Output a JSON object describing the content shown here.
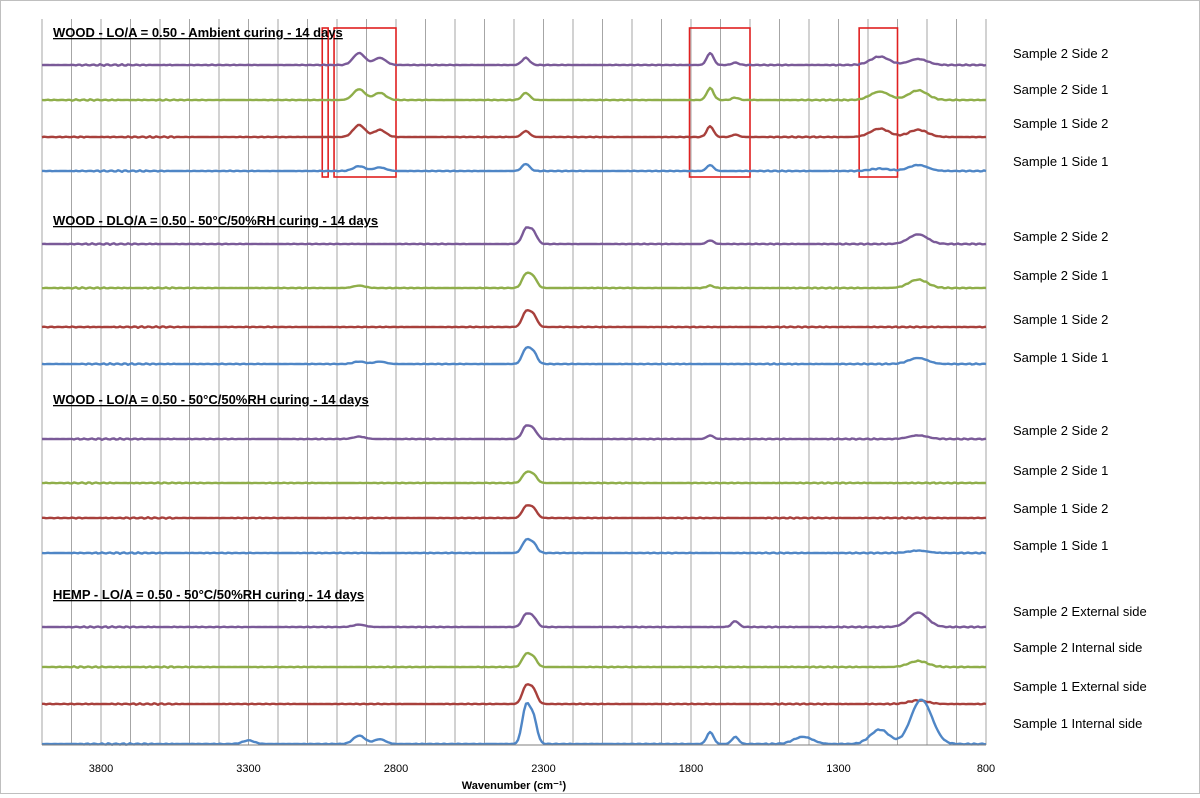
{
  "chart_data": {
    "type": "line",
    "xlabel": "Wavenumber (cm⁻¹)",
    "xlim": [
      4000,
      800
    ],
    "x_reversed": true,
    "xticks": [
      3800,
      3300,
      2800,
      2300,
      1800,
      1300,
      800
    ],
    "vertical_gridlines_every": 100,
    "highlight_boxes_group_1": [
      [
        3050,
        3030
      ],
      [
        3010,
        2800
      ],
      [
        1805,
        1600
      ],
      [
        1230,
        1100
      ]
    ],
    "series_colors": {
      "Sample 2 Side 2": "#7a5a98",
      "Sample 2 Side 1": "#8fae4a",
      "Sample 1 Side 2": "#a8403c",
      "Sample 1 Side 1": "#4f86c6",
      "Sample 2 External side": "#7a5a98",
      "Sample 2 Internal side": "#8fae4a",
      "Sample 1 External side": "#a8403c",
      "Sample 1 Internal side": "#4f86c6"
    },
    "groups": [
      {
        "title": "WOOD - LO/A = 0.50 - Ambient curing - 14 days",
        "series": [
          {
            "name": "Sample 2 Side 2",
            "peaks": [
              [
                2925,
                1.0
              ],
              [
                2855,
                0.6
              ],
              [
                2360,
                0.6
              ],
              [
                1735,
                1.0
              ],
              [
                1650,
                0.2
              ],
              [
                1160,
                0.7
              ],
              [
                1030,
                0.5
              ]
            ]
          },
          {
            "name": "Sample 2 Side 1",
            "peaks": [
              [
                2925,
                0.9
              ],
              [
                2855,
                0.6
              ],
              [
                2360,
                0.6
              ],
              [
                1735,
                1.0
              ],
              [
                1650,
                0.2
              ],
              [
                1160,
                0.7
              ],
              [
                1030,
                0.8
              ]
            ]
          },
          {
            "name": "Sample 1 Side 2",
            "peaks": [
              [
                2925,
                1.0
              ],
              [
                2855,
                0.6
              ],
              [
                2360,
                0.5
              ],
              [
                1735,
                0.9
              ],
              [
                1650,
                0.2
              ],
              [
                1160,
                0.7
              ],
              [
                1030,
                0.6
              ]
            ]
          },
          {
            "name": "Sample 1 Side 1",
            "peaks": [
              [
                2925,
                0.4
              ],
              [
                2855,
                0.3
              ],
              [
                2360,
                0.6
              ],
              [
                1735,
                0.5
              ],
              [
                1160,
                0.2
              ],
              [
                1030,
                0.5
              ]
            ]
          }
        ]
      },
      {
        "title": "WOOD - DLO/A = 0.50 - 50°C/50%RH curing - 14 days",
        "series": [
          {
            "name": "Sample 2 Side 2",
            "peaks": [
              [
                2360,
                1.2
              ],
              [
                2335,
                1.0
              ],
              [
                1735,
                0.3
              ],
              [
                1030,
                0.8
              ]
            ]
          },
          {
            "name": "Sample 2 Side 1",
            "peaks": [
              [
                2925,
                0.2
              ],
              [
                2360,
                1.1
              ],
              [
                2335,
                0.9
              ],
              [
                1735,
                0.2
              ],
              [
                1030,
                0.7
              ]
            ]
          },
          {
            "name": "Sample 1 Side 2",
            "peaks": [
              [
                2360,
                1.2
              ],
              [
                2335,
                1.0
              ]
            ]
          },
          {
            "name": "Sample 1 Side 1",
            "peaks": [
              [
                2925,
                0.2
              ],
              [
                2855,
                0.2
              ],
              [
                2360,
                1.2
              ],
              [
                2335,
                1.0
              ],
              [
                1030,
                0.5
              ]
            ]
          }
        ]
      },
      {
        "title": "WOOD - LO/A = 0.50 - 50°C/50%RH curing - 14 days",
        "series": [
          {
            "name": "Sample 2 Side 2",
            "peaks": [
              [
                2925,
                0.2
              ],
              [
                2360,
                1.0
              ],
              [
                2335,
                0.8
              ],
              [
                1735,
                0.3
              ],
              [
                1030,
                0.3
              ]
            ]
          },
          {
            "name": "Sample 2 Side 1",
            "peaks": [
              [
                2360,
                0.8
              ],
              [
                2335,
                0.7
              ]
            ]
          },
          {
            "name": "Sample 1 Side 2",
            "peaks": [
              [
                2360,
                0.9
              ],
              [
                2335,
                0.8
              ]
            ]
          },
          {
            "name": "Sample 1 Side 1",
            "peaks": [
              [
                2360,
                1.0
              ],
              [
                2335,
                0.8
              ],
              [
                1030,
                0.2
              ]
            ]
          }
        ]
      },
      {
        "title": "HEMP - LO/A = 0.50 - 50°C/50%RH curing - 14 days",
        "series": [
          {
            "name": "Sample 2 External side",
            "peaks": [
              [
                2925,
                0.2
              ],
              [
                2360,
                1.0
              ],
              [
                2335,
                0.8
              ],
              [
                1650,
                0.5
              ],
              [
                1030,
                1.2
              ]
            ]
          },
          {
            "name": "Sample 2 Internal side",
            "peaks": [
              [
                2360,
                1.0
              ],
              [
                2335,
                0.8
              ],
              [
                1030,
                0.5
              ]
            ]
          },
          {
            "name": "Sample 1 External side",
            "peaks": [
              [
                2360,
                1.4
              ],
              [
                2335,
                1.2
              ],
              [
                1030,
                0.3
              ]
            ]
          },
          {
            "name": "Sample 1 Internal side",
            "peaks": [
              [
                3300,
                0.3
              ],
              [
                2925,
                0.7
              ],
              [
                2855,
                0.4
              ],
              [
                2360,
                3.0
              ],
              [
                2335,
                2.2
              ],
              [
                1735,
                1.0
              ],
              [
                1650,
                0.6
              ],
              [
                1420,
                0.6
              ],
              [
                1160,
                1.2
              ],
              [
                1030,
                2.5
              ],
              [
                1000,
                1.6
              ]
            ]
          }
        ]
      }
    ]
  }
}
